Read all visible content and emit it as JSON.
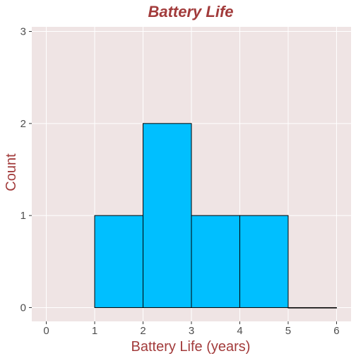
{
  "chart_data": {
    "type": "bar",
    "title": "Battery Life",
    "xlabel": "Battery Life (years)",
    "ylabel": "Count",
    "xlim": [
      -0.3,
      6.3
    ],
    "ylim": [
      -0.15,
      3.05
    ],
    "x_ticks": [
      0,
      1,
      2,
      3,
      4,
      5,
      6
    ],
    "y_ticks": [
      0,
      1,
      2,
      3
    ],
    "bins": [
      {
        "start": 1,
        "end": 2,
        "count": 1
      },
      {
        "start": 2,
        "end": 3,
        "count": 2
      },
      {
        "start": 3,
        "end": 4,
        "count": 1
      },
      {
        "start": 4,
        "end": 5,
        "count": 1
      },
      {
        "start": 5,
        "end": 6,
        "count": 0
      }
    ],
    "grid": true
  },
  "colors": {
    "panel_background": "#efe4e4",
    "bar_fill": "#00bfff",
    "bar_outline": "#000000",
    "title": "#a23b3b",
    "axis_title": "#a23b3b",
    "grid": "#ffffff"
  }
}
